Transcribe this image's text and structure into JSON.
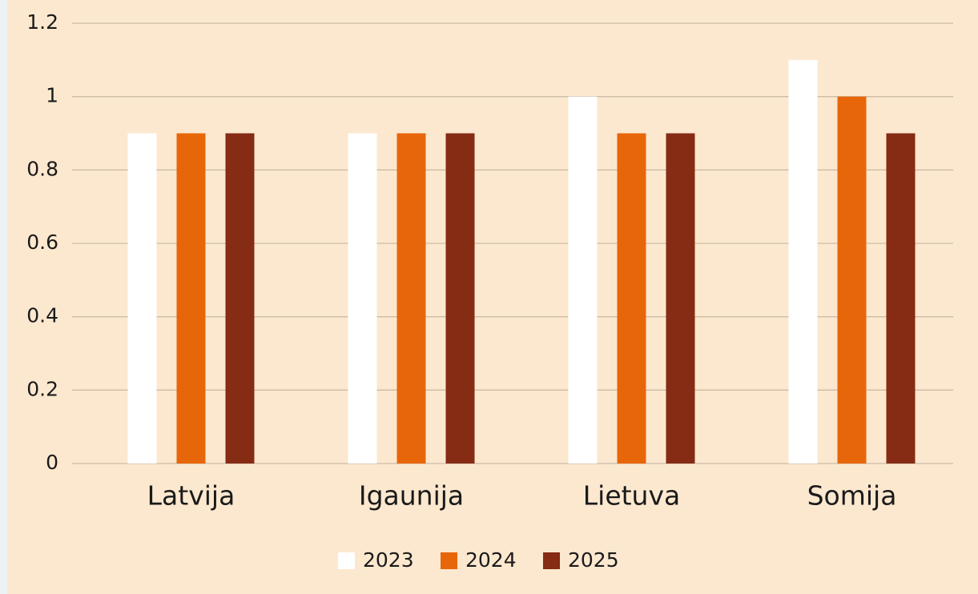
{
  "chart_data": {
    "type": "bar",
    "categories": [
      "Latvija",
      "Igaunija",
      "Lietuva",
      "Somija"
    ],
    "series": [
      {
        "name": "2023",
        "color": "#ffffff",
        "values": [
          0.9,
          0.9,
          1,
          1.1
        ]
      },
      {
        "name": "2024",
        "color": "#e8660a",
        "values": [
          0.9,
          0.9,
          0.9,
          1
        ]
      },
      {
        "name": "2025",
        "color": "#862b14",
        "values": [
          0.9,
          0.9,
          0.9,
          0.9
        ]
      }
    ],
    "ylim": [
      0,
      1.2
    ],
    "yticks": [
      0,
      0.2,
      0.4,
      0.6,
      0.8,
      1,
      1.2
    ],
    "grid": true,
    "legend": "bottom"
  }
}
